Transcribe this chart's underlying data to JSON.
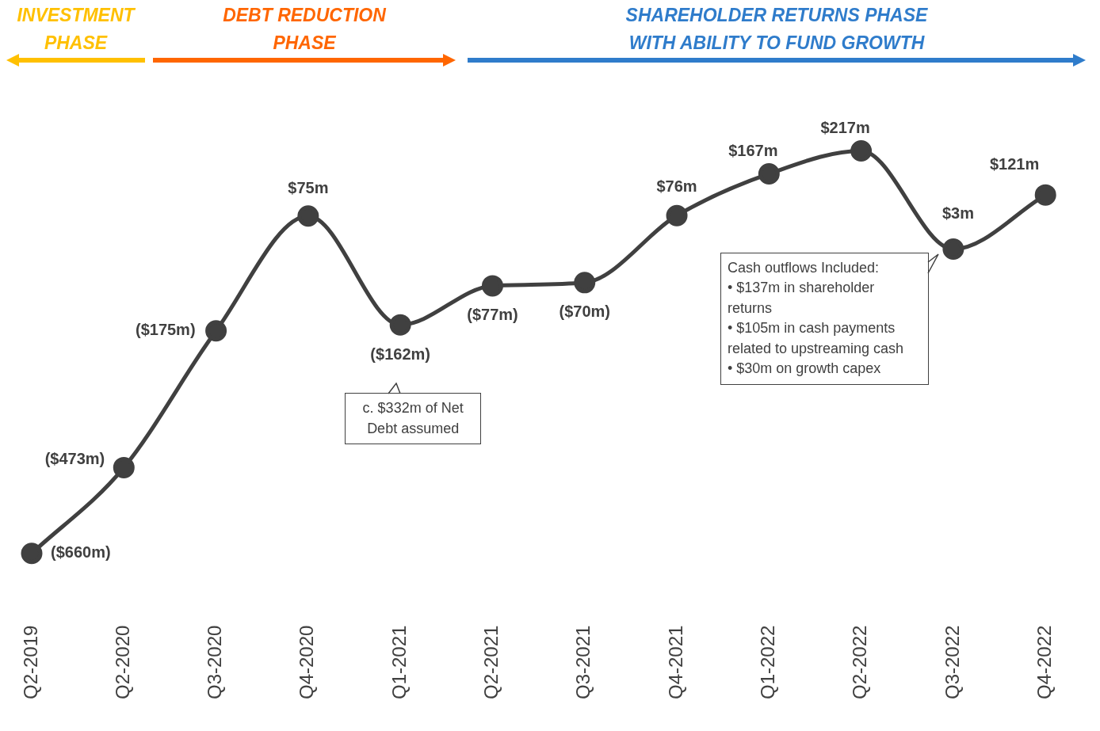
{
  "chart_data": {
    "type": "line",
    "categories": [
      "Q2-2019",
      "Q2-2020",
      "Q3-2020",
      "Q4-2020",
      "Q1-2021",
      "Q2-2021",
      "Q3-2021",
      "Q4-2021",
      "Q1-2022",
      "Q2-2022",
      "Q3-2022",
      "Q4-2022"
    ],
    "values": [
      -660,
      -473,
      -175,
      75,
      -162,
      -77,
      -70,
      76,
      167,
      217,
      3,
      121
    ],
    "value_labels": [
      "($660m)",
      "($473m)",
      "($175m)",
      "$75m",
      "($162m)",
      "($77m)",
      "($70m)",
      "$76m",
      "$167m",
      "$217m",
      "$3m",
      "$121m"
    ],
    "color": "#404040",
    "marker": "circle",
    "tick_labels": "x",
    "legend": false,
    "grid": false,
    "annotations": [
      "INVESTMENT PHASE",
      "DEBT REDUCTION PHASE",
      "SHAREHOLDER RETURNS PHASE WITH ABILITY TO FUND GROWTH",
      "c. $332m of Net Debt assumed",
      "Cash outflows Included:\n• $137m in shareholder returns\n• $105m in cash payments related to upstreaming cash\n• $30m on growth capex"
    ]
  }
}
